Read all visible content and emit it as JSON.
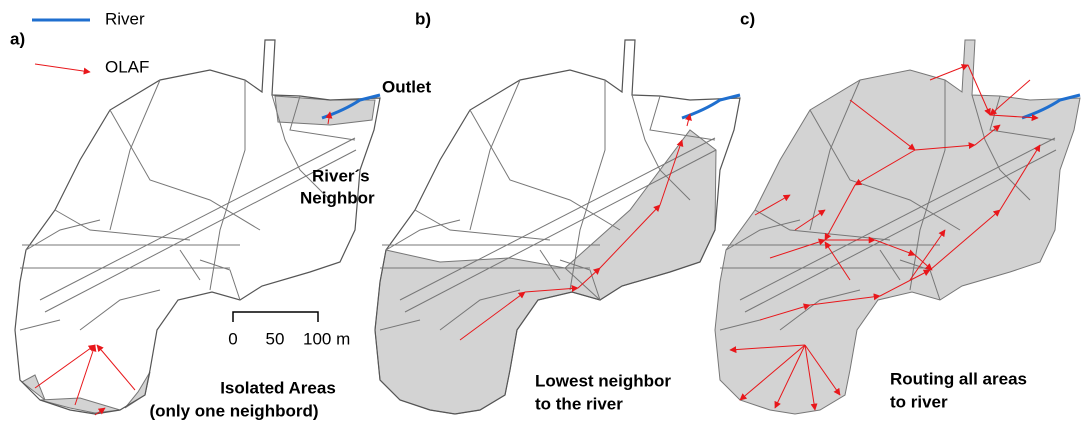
{
  "legend": {
    "items": [
      {
        "label": "River"
      },
      {
        "label": "OLAF"
      }
    ]
  },
  "panels": [
    {
      "label": "a)",
      "annotations": [
        "Outlet",
        "River´s",
        "Neighbor",
        "Isolated Areas",
        "(only one neighbord)"
      ]
    },
    {
      "label": "b)",
      "annotations": [
        "Lowest neighbor",
        "to the river"
      ]
    },
    {
      "label": "c)",
      "annotations": [
        "Routing all areas",
        "to river"
      ]
    }
  ],
  "scale_bar": {
    "labels": [
      "0",
      "50",
      "100 m"
    ]
  }
}
